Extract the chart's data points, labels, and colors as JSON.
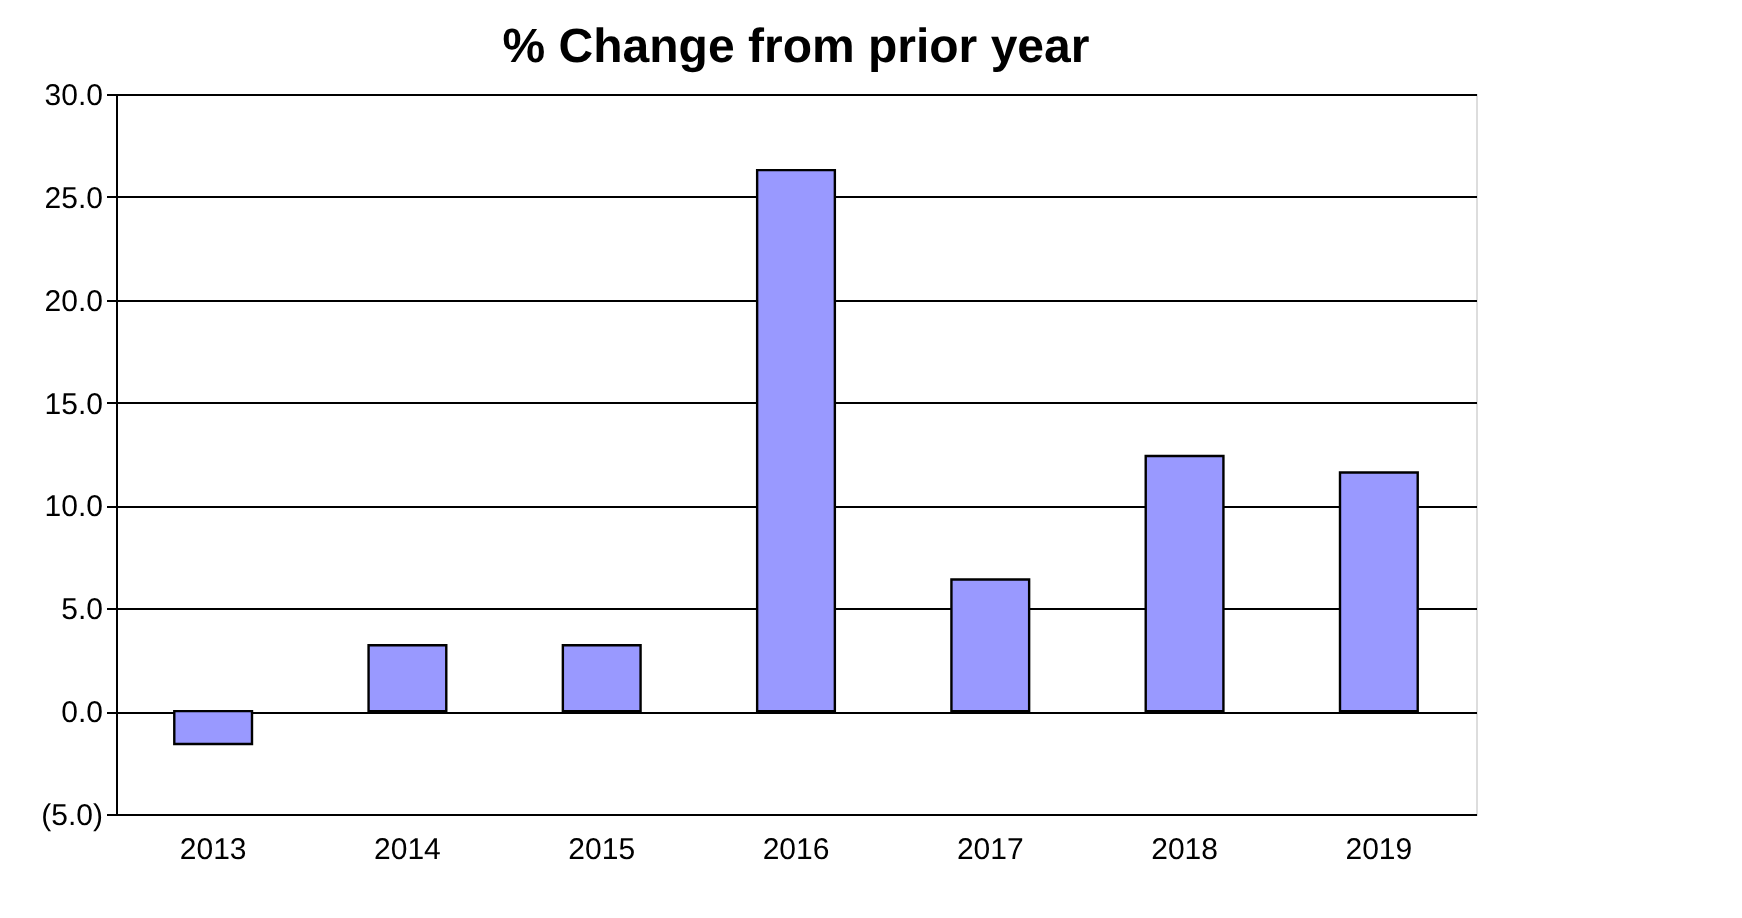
{
  "chart_data": {
    "type": "bar",
    "title": "% Change from prior year",
    "categories": [
      "2013",
      "2014",
      "2015",
      "2016",
      "2017",
      "2018",
      "2019"
    ],
    "values": [
      -1.6,
      3.2,
      3.2,
      26.3,
      6.4,
      12.4,
      11.6
    ],
    "color": "#9999ff",
    "ylim": [
      -5,
      30
    ],
    "yticks": [
      {
        "value": -5,
        "label": "(5.0)"
      },
      {
        "value": 0,
        "label": "0.0"
      },
      {
        "value": 5,
        "label": "5.0"
      },
      {
        "value": 10,
        "label": "10.0"
      },
      {
        "value": 15,
        "label": "15.0"
      },
      {
        "value": 20,
        "label": "20.0"
      },
      {
        "value": 25,
        "label": "25.0"
      },
      {
        "value": 30,
        "label": "30.0"
      }
    ],
    "grid": "y"
  }
}
